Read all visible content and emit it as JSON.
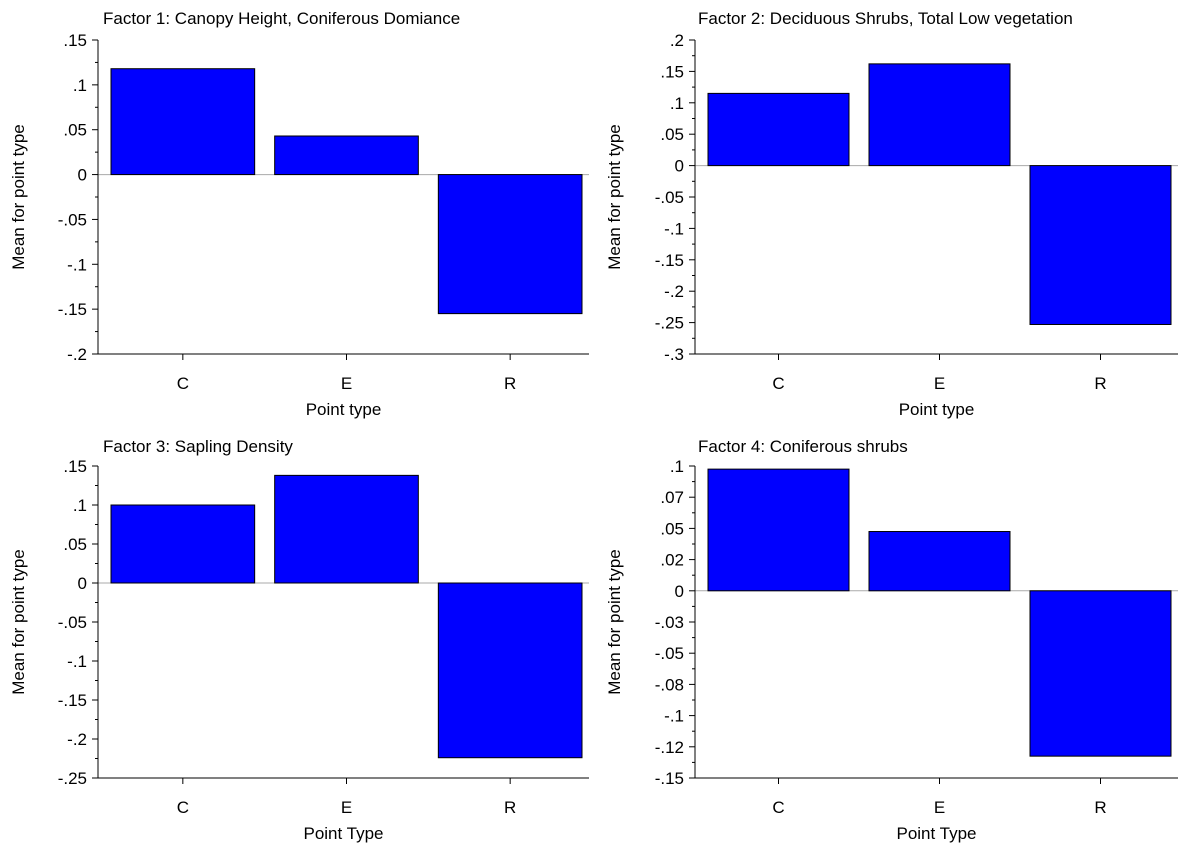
{
  "colors": {
    "bar_fill": "#0000ff",
    "bar_stroke": "#000000",
    "zero_line": "#aaaaaa"
  },
  "chart_data": [
    {
      "type": "bar",
      "title": "Factor 1: Canopy Height, Coniferous Domiance",
      "xlabel": "Point type",
      "ylabel": "Mean for point type",
      "categories": [
        "C",
        "E",
        "R"
      ],
      "values": [
        0.118,
        0.043,
        -0.155
      ],
      "ylim": [
        -0.2,
        0.15
      ],
      "yticks": [
        0.15,
        0.1,
        0.05,
        0,
        -0.05,
        -0.1,
        -0.15,
        -0.2
      ],
      "ytick_labels": [
        ".15",
        ".1",
        ".05",
        "0",
        "-.05",
        "-.1",
        "-.15",
        "-.2"
      ],
      "grid": false
    },
    {
      "type": "bar",
      "title": "Factor 2: Deciduous Shrubs, Total Low vegetation",
      "xlabel": "Point type",
      "ylabel": "Mean for point type",
      "categories": [
        "C",
        "E",
        "R"
      ],
      "values": [
        0.115,
        0.162,
        -0.253
      ],
      "ylim": [
        -0.3,
        0.2
      ],
      "yticks": [
        0.2,
        0.15,
        0.1,
        0.05,
        0,
        -0.05,
        -0.1,
        -0.15,
        -0.2,
        -0.25,
        -0.3
      ],
      "ytick_labels": [
        ".2",
        ".15",
        ".1",
        ".05",
        "0",
        "-.05",
        "-.1",
        "-.15",
        "-.2",
        "-.25",
        "-.3"
      ],
      "grid": false
    },
    {
      "type": "bar",
      "title": "Factor 3: Sapling Density",
      "xlabel": "Point Type",
      "ylabel": "Mean for point type",
      "categories": [
        "C",
        "E",
        "R"
      ],
      "values": [
        0.1,
        0.138,
        -0.224
      ],
      "ylim": [
        -0.25,
        0.15
      ],
      "yticks": [
        0.15,
        0.1,
        0.05,
        0,
        -0.05,
        -0.1,
        -0.15,
        -0.2,
        -0.25
      ],
      "ytick_labels": [
        ".15",
        ".1",
        ".05",
        "0",
        "-.05",
        "-.1",
        "-.15",
        "-.2",
        "-.25"
      ],
      "grid": false
    },
    {
      "type": "bar",
      "title": "Factor 4: Coniferous shrubs",
      "xlabel": "Point Type",
      "ylabel": "Mean for point type",
      "categories": [
        "C",
        "E",
        "R"
      ],
      "values": [
        0.0975,
        0.0475,
        -0.1325
      ],
      "ylim": [
        -0.15,
        0.1
      ],
      "yticks": [
        0.1,
        0.075,
        0.05,
        0.025,
        0,
        -0.025,
        -0.05,
        -0.075,
        -0.1,
        -0.125,
        -0.15
      ],
      "ytick_labels": [
        ".1",
        ".07",
        ".05",
        ".02",
        "0",
        "-.03",
        "-.05",
        "-.08",
        "-.1",
        "-.12",
        "-.15"
      ],
      "grid": false
    }
  ]
}
